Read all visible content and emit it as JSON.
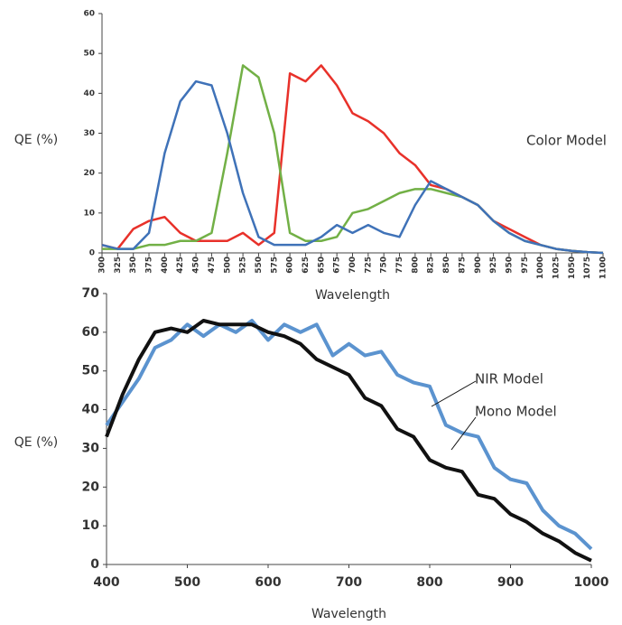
{
  "chart_data": [
    {
      "type": "line",
      "annotation": "Color Model",
      "ylabel": "QE (%)",
      "xlabel": "Wavelength",
      "x": [
        300,
        325,
        350,
        375,
        400,
        425,
        450,
        475,
        500,
        525,
        550,
        575,
        600,
        625,
        650,
        675,
        700,
        725,
        750,
        775,
        800,
        825,
        850,
        875,
        900,
        925,
        950,
        975,
        1000,
        1025,
        1050,
        1075,
        1100
      ],
      "xlim": [
        300,
        1100
      ],
      "xticks": [
        300,
        325,
        350,
        375,
        400,
        425,
        450,
        475,
        500,
        525,
        550,
        575,
        600,
        625,
        650,
        675,
        700,
        725,
        750,
        775,
        800,
        825,
        850,
        875,
        900,
        925,
        950,
        975,
        1000,
        1025,
        1050,
        1075,
        1100
      ],
      "ylim": [
        0,
        60
      ],
      "yticks": [
        0,
        10,
        20,
        30,
        40,
        50,
        60
      ],
      "series": [
        {
          "color": "#e8312a",
          "values": [
            2,
            1,
            6,
            8,
            9,
            5,
            3,
            3,
            3,
            5,
            2,
            5,
            45,
            43,
            47,
            42,
            35,
            33,
            30,
            25,
            22,
            17,
            16,
            14,
            12,
            8,
            6,
            4,
            2,
            1,
            0.5,
            0.2,
            0
          ]
        },
        {
          "color": "#72b046",
          "values": [
            1,
            1,
            1,
            2,
            2,
            3,
            3,
            5,
            25,
            47,
            44,
            30,
            5,
            3,
            3,
            4,
            10,
            11,
            13,
            15,
            16,
            16,
            15,
            14,
            12,
            8,
            5,
            3,
            2,
            1,
            0.5,
            0.2,
            0
          ]
        },
        {
          "color": "#3f72b8",
          "values": [
            2,
            1,
            1,
            5,
            25,
            38,
            43,
            42,
            30,
            15,
            4,
            2,
            2,
            2,
            4,
            7,
            5,
            7,
            5,
            4,
            12,
            18,
            16,
            14,
            12,
            8,
            5,
            3,
            2,
            1,
            0.5,
            0.2,
            0
          ]
        }
      ]
    },
    {
      "type": "line",
      "ylabel": "QE (%)",
      "xlabel": "Wavelength",
      "x": [
        400,
        420,
        440,
        460,
        480,
        500,
        520,
        540,
        560,
        580,
        600,
        620,
        640,
        660,
        680,
        700,
        720,
        740,
        760,
        780,
        800,
        820,
        840,
        860,
        880,
        900,
        920,
        940,
        960,
        980,
        1000
      ],
      "xlim": [
        400,
        1000
      ],
      "xticks": [
        400,
        500,
        600,
        700,
        800,
        900,
        1000
      ],
      "ylim": [
        0,
        70
      ],
      "yticks": [
        0,
        10,
        20,
        30,
        40,
        50,
        60,
        70
      ],
      "series": [
        {
          "name": "NIR Model",
          "color": "#5b93cf",
          "values": [
            36,
            42,
            48,
            56,
            58,
            62,
            59,
            62,
            60,
            63,
            58,
            62,
            60,
            62,
            54,
            57,
            54,
            55,
            49,
            47,
            46,
            36,
            34,
            33,
            25,
            22,
            21,
            14,
            10,
            8,
            4
          ]
        },
        {
          "name": "Mono Model",
          "color": "#111111",
          "values": [
            33,
            44,
            53,
            60,
            61,
            60,
            63,
            62,
            62,
            62,
            60,
            59,
            57,
            53,
            51,
            49,
            43,
            41,
            35,
            33,
            27,
            25,
            24,
            18,
            17,
            13,
            11,
            8,
            6,
            3,
            1
          ]
        }
      ]
    }
  ]
}
